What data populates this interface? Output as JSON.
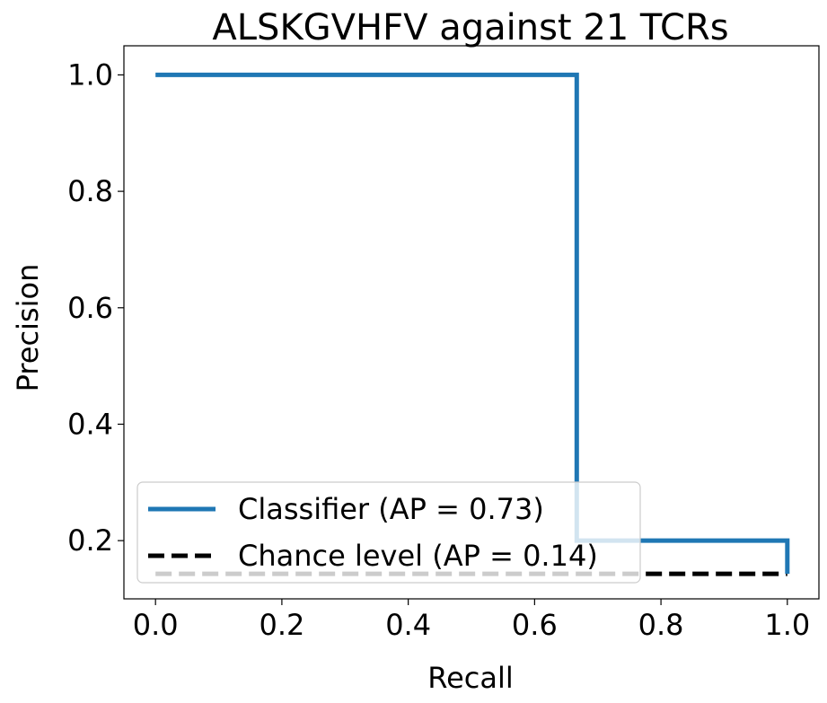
{
  "chart_data": {
    "type": "line",
    "title": "ALSKGVHFV against 21 TCRs",
    "xlabel": "Recall",
    "ylabel": "Precision",
    "xlim": [
      -0.05,
      1.05
    ],
    "ylim": [
      0.1,
      1.05
    ],
    "xticks": [
      0.0,
      0.2,
      0.4,
      0.6,
      0.8,
      1.0
    ],
    "xtick_labels": [
      "0.0",
      "0.2",
      "0.4",
      "0.6",
      "0.8",
      "1.0"
    ],
    "yticks": [
      0.2,
      0.4,
      0.6,
      0.8,
      1.0
    ],
    "ytick_labels": [
      "0.2",
      "0.4",
      "0.6",
      "0.8",
      "1.0"
    ],
    "grid": false,
    "legend_position": "lower-left",
    "series": [
      {
        "name": "Classifier (AP = 0.73)",
        "color": "#1f77b4",
        "style": "solid",
        "x": [
          0.0,
          0.6667,
          0.6667,
          1.0,
          1.0
        ],
        "y": [
          1.0,
          1.0,
          0.2,
          0.2,
          0.1429
        ]
      },
      {
        "name": "Chance level (AP = 0.14)",
        "color": "#000000",
        "style": "dashed",
        "x": [
          0.0,
          1.0
        ],
        "y": [
          0.1429,
          0.1429
        ]
      }
    ]
  }
}
